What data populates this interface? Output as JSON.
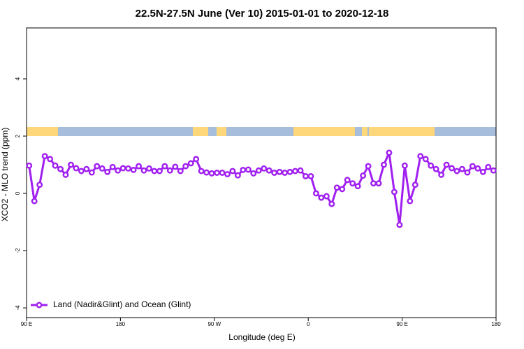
{
  "chart_data": {
    "type": "line",
    "title": "22.5N-27.5N June (Ver 10)   2015-01-01 to 2020-12-18",
    "x_label": "Longitude (deg E)",
    "y_label": "XCO2 - MLO trend (ppm)",
    "xlim": [
      -270,
      180
    ],
    "xticks": [
      {
        "value": -270,
        "label": "90 E"
      },
      {
        "value": -180,
        "label": "180"
      },
      {
        "value": -90,
        "label": "90 W"
      },
      0,
      {
        "value": 90,
        "label": "90 E"
      },
      180
    ],
    "ylim": [
      -4.34,
      5.78
    ],
    "yticks": [
      -4,
      -2,
      0,
      2,
      4
    ],
    "legend_position": "bottom-left",
    "x": [
      -267.5,
      -262.5,
      -257.5,
      -252.5,
      -247.5,
      -242.5,
      -237.5,
      -232.5,
      -227.5,
      -222.5,
      -217.5,
      -212.5,
      -207.5,
      -202.5,
      -197.5,
      -192.5,
      -187.5,
      -182.5,
      -177.5,
      -172.5,
      -167.5,
      -162.5,
      -157.5,
      -152.5,
      -147.5,
      -142.5,
      -137.5,
      -132.5,
      -127.5,
      -122.5,
      -117.5,
      -112.5,
      -107.5,
      -102.5,
      -97.5,
      -92.5,
      -87.5,
      -82.5,
      -77.5,
      -72.5,
      -67.5,
      -62.5,
      -57.5,
      -52.5,
      -47.5,
      -42.5,
      -37.5,
      -32.5,
      -27.5,
      -22.5,
      -17.5,
      -12.5,
      -7.5,
      -2.5,
      2.5,
      7.5,
      12.5,
      17.5,
      22.5,
      27.5,
      32.5,
      37.5,
      42.5,
      47.5,
      52.5,
      57.5,
      62.5,
      67.5,
      72.5,
      77.5,
      82.5,
      87.5,
      92.5,
      97.5,
      102.5,
      107.5,
      112.5,
      117.5,
      122.5,
      127.5,
      132.5,
      137.5,
      142.5,
      147.5,
      152.5,
      157.5,
      162.5,
      167.5,
      172.5,
      177.5
    ],
    "series": [
      {
        "name": "Land (Nadir&Glint) and Ocean (Glint)",
        "color": "#a020f0",
        "values": [
          0.97,
          -0.27,
          0.3,
          1.3,
          1.2,
          0.97,
          0.85,
          0.65,
          1.0,
          0.88,
          0.78,
          0.85,
          0.73,
          0.95,
          0.87,
          0.75,
          0.92,
          0.8,
          0.88,
          0.87,
          0.82,
          0.95,
          0.8,
          0.87,
          0.78,
          0.78,
          0.95,
          0.8,
          0.93,
          0.78,
          0.95,
          1.05,
          1.2,
          0.78,
          0.73,
          0.7,
          0.72,
          0.72,
          0.67,
          0.78,
          0.63,
          0.82,
          0.83,
          0.7,
          0.8,
          0.87,
          0.8,
          0.72,
          0.75,
          0.72,
          0.75,
          0.78,
          0.8,
          0.6,
          0.6,
          0.0,
          -0.15,
          -0.1,
          -0.37,
          0.2,
          0.15,
          0.47,
          0.35,
          0.25,
          0.62,
          0.95,
          0.35,
          0.35,
          1.0,
          1.42,
          0.05,
          -1.1,
          0.97,
          -0.27,
          0.3,
          1.3,
          1.2,
          0.97,
          0.85,
          0.65,
          1.0,
          0.88,
          0.78,
          0.85,
          0.73,
          0.95,
          0.87,
          0.75,
          0.92,
          0.8
        ]
      }
    ]
  }
}
